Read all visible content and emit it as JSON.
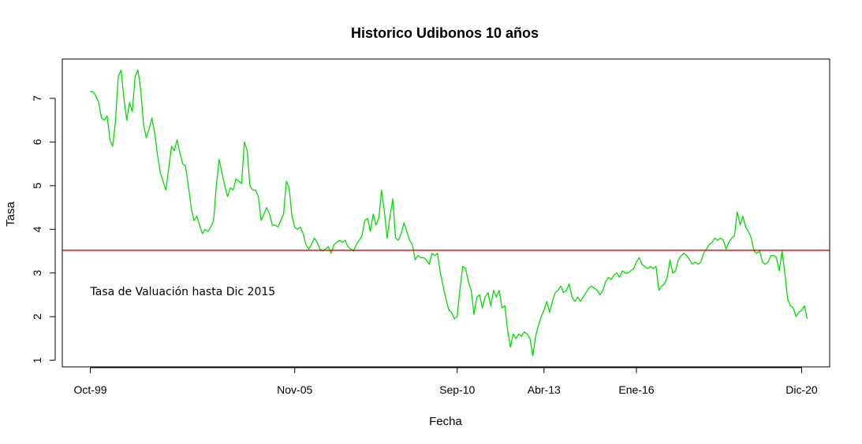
{
  "chart_data": {
    "type": "line",
    "title": "Historico Udibonos 10 años",
    "xlabel": "Fecha",
    "ylabel": "Tasa",
    "x_ticks": [
      {
        "label": "Oct-99",
        "x": 0
      },
      {
        "label": "Nov-05",
        "x": 73
      },
      {
        "label": "Sep-10",
        "x": 131
      },
      {
        "label": "Abr-13",
        "x": 162
      },
      {
        "label": "Ene-16",
        "x": 195
      },
      {
        "label": "Dic-20",
        "x": 254
      }
    ],
    "y_ticks": [
      1,
      2,
      3,
      4,
      5,
      6,
      7
    ],
    "xlim": [
      -10,
      264
    ],
    "ylim": [
      0.85,
      7.9
    ],
    "series": [
      {
        "color": "#00dd00",
        "points": [
          [
            0,
            7.15
          ],
          [
            1,
            7.15
          ],
          [
            2,
            7.05
          ],
          [
            3,
            6.9
          ],
          [
            4,
            6.55
          ],
          [
            5,
            6.5
          ],
          [
            6,
            6.6
          ],
          [
            7,
            6.05
          ],
          [
            8,
            5.9
          ],
          [
            9,
            6.5
          ],
          [
            10,
            7.5
          ],
          [
            11,
            7.65
          ],
          [
            12,
            7.0
          ],
          [
            13,
            6.5
          ],
          [
            14,
            6.9
          ],
          [
            15,
            6.7
          ],
          [
            16,
            7.5
          ],
          [
            17,
            7.65
          ],
          [
            18,
            7.2
          ],
          [
            19,
            6.4
          ],
          [
            20,
            6.1
          ],
          [
            21,
            6.3
          ],
          [
            22,
            6.55
          ],
          [
            23,
            6.2
          ],
          [
            24,
            5.7
          ],
          [
            25,
            5.3
          ],
          [
            26,
            5.1
          ],
          [
            27,
            4.9
          ],
          [
            28,
            5.4
          ],
          [
            29,
            5.9
          ],
          [
            30,
            5.8
          ],
          [
            31,
            6.05
          ],
          [
            32,
            5.75
          ],
          [
            33,
            5.5
          ],
          [
            34,
            5.45
          ],
          [
            35,
            5.0
          ],
          [
            36,
            4.5
          ],
          [
            37,
            4.2
          ],
          [
            38,
            4.3
          ],
          [
            39,
            4.1
          ],
          [
            40,
            3.9
          ],
          [
            41,
            4.0
          ],
          [
            42,
            3.95
          ],
          [
            43,
            4.05
          ],
          [
            44,
            4.2
          ],
          [
            45,
            5.0
          ],
          [
            46,
            5.6
          ],
          [
            47,
            5.3
          ],
          [
            48,
            5.0
          ],
          [
            49,
            4.75
          ],
          [
            50,
            4.95
          ],
          [
            51,
            4.9
          ],
          [
            52,
            5.15
          ],
          [
            53,
            5.1
          ],
          [
            54,
            5.05
          ],
          [
            55,
            6.0
          ],
          [
            56,
            5.8
          ],
          [
            57,
            5.0
          ],
          [
            58,
            4.9
          ],
          [
            59,
            4.9
          ],
          [
            60,
            4.75
          ],
          [
            61,
            4.2
          ],
          [
            62,
            4.35
          ],
          [
            63,
            4.5
          ],
          [
            64,
            4.35
          ],
          [
            65,
            4.1
          ],
          [
            66,
            4.1
          ],
          [
            67,
            4.05
          ],
          [
            68,
            4.2
          ],
          [
            69,
            4.35
          ],
          [
            70,
            5.1
          ],
          [
            71,
            4.95
          ],
          [
            72,
            4.3
          ],
          [
            73,
            4.05
          ],
          [
            74,
            4.0
          ],
          [
            75,
            4.05
          ],
          [
            76,
            3.9
          ],
          [
            77,
            3.65
          ],
          [
            78,
            3.55
          ],
          [
            79,
            3.65
          ],
          [
            80,
            3.8
          ],
          [
            81,
            3.7
          ],
          [
            82,
            3.55
          ],
          [
            83,
            3.5
          ],
          [
            84,
            3.55
          ],
          [
            85,
            3.6
          ],
          [
            86,
            3.45
          ],
          [
            87,
            3.65
          ],
          [
            88,
            3.7
          ],
          [
            89,
            3.75
          ],
          [
            90,
            3.7
          ],
          [
            91,
            3.75
          ],
          [
            92,
            3.6
          ],
          [
            93,
            3.55
          ],
          [
            94,
            3.5
          ],
          [
            95,
            3.65
          ],
          [
            96,
            3.75
          ],
          [
            97,
            3.85
          ],
          [
            98,
            4.2
          ],
          [
            99,
            4.25
          ],
          [
            100,
            3.95
          ],
          [
            101,
            4.35
          ],
          [
            102,
            4.1
          ],
          [
            103,
            4.25
          ],
          [
            104,
            4.9
          ],
          [
            105,
            4.4
          ],
          [
            106,
            3.8
          ],
          [
            107,
            4.3
          ],
          [
            108,
            4.7
          ],
          [
            109,
            3.8
          ],
          [
            110,
            3.75
          ],
          [
            111,
            3.9
          ],
          [
            112,
            4.15
          ],
          [
            113,
            3.95
          ],
          [
            114,
            3.75
          ],
          [
            115,
            3.65
          ],
          [
            116,
            3.3
          ],
          [
            117,
            3.4
          ],
          [
            118,
            3.35
          ],
          [
            119,
            3.35
          ],
          [
            120,
            3.3
          ],
          [
            121,
            3.2
          ],
          [
            122,
            3.45
          ],
          [
            123,
            3.4
          ],
          [
            124,
            3.45
          ],
          [
            125,
            3.0
          ],
          [
            126,
            2.7
          ],
          [
            127,
            2.4
          ],
          [
            128,
            2.15
          ],
          [
            129,
            2.1
          ],
          [
            130,
            1.95
          ],
          [
            131,
            2.0
          ],
          [
            132,
            2.65
          ],
          [
            133,
            3.15
          ],
          [
            134,
            3.1
          ],
          [
            135,
            2.8
          ],
          [
            136,
            2.6
          ],
          [
            137,
            2.05
          ],
          [
            138,
            2.45
          ],
          [
            139,
            2.5
          ],
          [
            140,
            2.2
          ],
          [
            141,
            2.45
          ],
          [
            142,
            2.55
          ],
          [
            143,
            2.25
          ],
          [
            144,
            2.6
          ],
          [
            145,
            2.45
          ],
          [
            146,
            2.6
          ],
          [
            147,
            2.2
          ],
          [
            148,
            2.25
          ],
          [
            149,
            1.7
          ],
          [
            150,
            1.3
          ],
          [
            151,
            1.6
          ],
          [
            152,
            1.5
          ],
          [
            153,
            1.6
          ],
          [
            154,
            1.55
          ],
          [
            155,
            1.65
          ],
          [
            156,
            1.6
          ],
          [
            157,
            1.5
          ],
          [
            158,
            1.1
          ],
          [
            159,
            1.55
          ],
          [
            160,
            1.8
          ],
          [
            161,
            2.0
          ],
          [
            162,
            2.15
          ],
          [
            163,
            2.35
          ],
          [
            164,
            2.1
          ],
          [
            165,
            2.35
          ],
          [
            166,
            2.55
          ],
          [
            167,
            2.6
          ],
          [
            168,
            2.7
          ],
          [
            169,
            2.55
          ],
          [
            170,
            2.6
          ],
          [
            171,
            2.75
          ],
          [
            172,
            2.45
          ],
          [
            173,
            2.35
          ],
          [
            174,
            2.45
          ],
          [
            175,
            2.35
          ],
          [
            176,
            2.45
          ],
          [
            177,
            2.55
          ],
          [
            178,
            2.65
          ],
          [
            179,
            2.7
          ],
          [
            180,
            2.65
          ],
          [
            181,
            2.6
          ],
          [
            182,
            2.5
          ],
          [
            183,
            2.6
          ],
          [
            184,
            2.8
          ],
          [
            185,
            2.9
          ],
          [
            186,
            2.85
          ],
          [
            187,
            2.95
          ],
          [
            188,
            3.0
          ],
          [
            189,
            2.9
          ],
          [
            190,
            3.05
          ],
          [
            191,
            3.0
          ],
          [
            192,
            3.0
          ],
          [
            193,
            3.05
          ],
          [
            194,
            3.1
          ],
          [
            195,
            3.25
          ],
          [
            196,
            3.35
          ],
          [
            197,
            3.2
          ],
          [
            198,
            3.15
          ],
          [
            199,
            3.1
          ],
          [
            200,
            3.15
          ],
          [
            201,
            3.1
          ],
          [
            202,
            3.15
          ],
          [
            203,
            2.6
          ],
          [
            204,
            2.7
          ],
          [
            205,
            2.75
          ],
          [
            206,
            2.9
          ],
          [
            207,
            3.3
          ],
          [
            208,
            3.0
          ],
          [
            209,
            3.05
          ],
          [
            210,
            3.3
          ],
          [
            211,
            3.4
          ],
          [
            212,
            3.45
          ],
          [
            213,
            3.4
          ],
          [
            214,
            3.3
          ],
          [
            215,
            3.2
          ],
          [
            216,
            3.25
          ],
          [
            217,
            3.2
          ],
          [
            218,
            3.25
          ],
          [
            219,
            3.45
          ],
          [
            220,
            3.55
          ],
          [
            221,
            3.65
          ],
          [
            222,
            3.7
          ],
          [
            223,
            3.8
          ],
          [
            224,
            3.75
          ],
          [
            225,
            3.8
          ],
          [
            226,
            3.75
          ],
          [
            227,
            3.55
          ],
          [
            228,
            3.7
          ],
          [
            229,
            3.8
          ],
          [
            230,
            3.85
          ],
          [
            231,
            4.4
          ],
          [
            232,
            4.1
          ],
          [
            233,
            4.3
          ],
          [
            234,
            4.05
          ],
          [
            235,
            3.95
          ],
          [
            236,
            3.8
          ],
          [
            237,
            3.5
          ],
          [
            238,
            3.45
          ],
          [
            239,
            3.5
          ],
          [
            240,
            3.25
          ],
          [
            241,
            3.2
          ],
          [
            242,
            3.25
          ],
          [
            243,
            3.4
          ],
          [
            244,
            3.4
          ],
          [
            245,
            3.35
          ],
          [
            246,
            3.05
          ],
          [
            247,
            3.5
          ],
          [
            248,
            3.0
          ],
          [
            249,
            2.4
          ],
          [
            250,
            2.25
          ],
          [
            251,
            2.2
          ],
          [
            252,
            2.0
          ],
          [
            253,
            2.1
          ],
          [
            254,
            2.15
          ],
          [
            255,
            2.25
          ],
          [
            256,
            1.95
          ]
        ]
      }
    ],
    "reference_line": {
      "y": 3.52,
      "color": "#dd0000"
    },
    "annotation": {
      "text": "Tasa  de Valuación hasta Dic 2015",
      "x": 0,
      "y": 2.58
    },
    "grid": false,
    "legend": "none"
  }
}
